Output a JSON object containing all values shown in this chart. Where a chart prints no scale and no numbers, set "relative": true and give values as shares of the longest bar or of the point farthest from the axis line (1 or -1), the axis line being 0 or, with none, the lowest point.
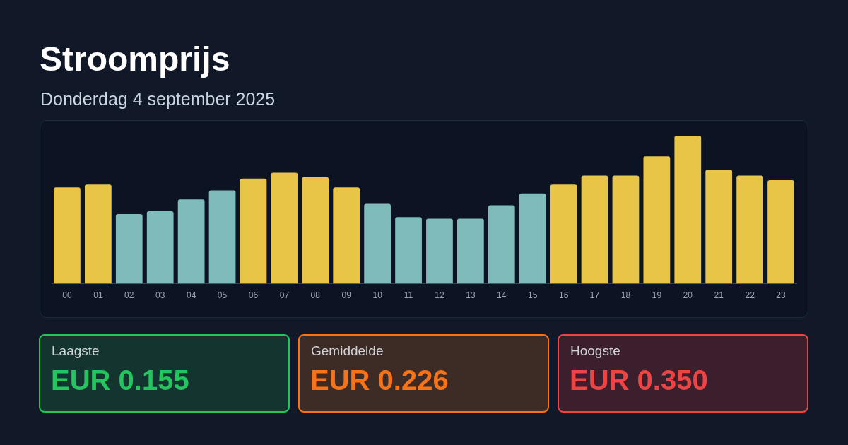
{
  "chart_data": {
    "type": "bar",
    "title": "Stroomprijs",
    "subtitle": "Donderdag 4 september 2025",
    "categories": [
      "00",
      "01",
      "02",
      "03",
      "04",
      "05",
      "06",
      "07",
      "08",
      "09",
      "10",
      "11",
      "12",
      "13",
      "14",
      "15",
      "16",
      "17",
      "18",
      "19",
      "20",
      "21",
      "22",
      "23"
    ],
    "values": [
      0.65,
      0.67,
      0.47,
      0.49,
      0.57,
      0.63,
      0.71,
      0.75,
      0.72,
      0.65,
      0.54,
      0.45,
      0.44,
      0.44,
      0.53,
      0.61,
      0.67,
      0.73,
      0.73,
      0.86,
      1,
      0.77,
      0.73,
      0.7
    ],
    "colors": [
      "#e8c547",
      "#e8c547",
      "#7fbbba",
      "#7fbbba",
      "#7fbbba",
      "#7fbbba",
      "#e8c547",
      "#e8c547",
      "#e8c547",
      "#e8c547",
      "#7fbbba",
      "#7fbbba",
      "#7fbbba",
      "#7fbbba",
      "#7fbbba",
      "#7fbbba",
      "#e8c547",
      "#e8c547",
      "#e8c547",
      "#e8c547",
      "#e8c547",
      "#e8c547",
      "#e8c547",
      "#e8c547"
    ],
    "relative": true,
    "annotations": [
      "Laagste",
      "EUR 0.155",
      "Gemiddelde",
      "EUR 0.226",
      "Hoogste",
      "EUR 0.350"
    ]
  }
}
